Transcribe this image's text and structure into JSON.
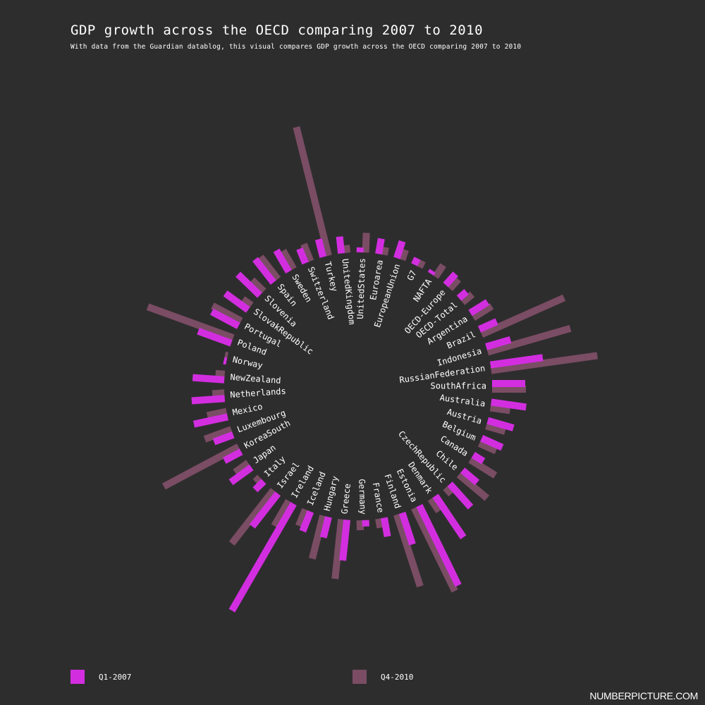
{
  "title": "GDP growth across the OECD comparing 2007 to 2010",
  "subtitle": "With data from the Guardian datablog, this visual compares GDP growth across the OECD comparing 2007 to 2010",
  "brand": "NUMBERPICTURE.COM",
  "colors": {
    "background": "#2e2d2e",
    "q1_2007": "#d22ee0",
    "q4_2010": "#7a4d64",
    "text": "#ffffff"
  },
  "chart_data": {
    "type": "bar",
    "layout": "radial",
    "categories": [
      "Turkey",
      "UnitedKingdom",
      "UnitedStates",
      "Euroarea",
      "EuropeanUnion",
      "G7",
      "NAFTA",
      "OECD-Europe",
      "OECD-Total",
      "Argentina",
      "Brazil",
      "Indonesia",
      "RussianFederation",
      "SouthAfrica",
      "Australia",
      "Austria",
      "Belgium",
      "Canada",
      "Chile",
      "CzechRepublic",
      "Denmark",
      "Estonia",
      "Finland",
      "France",
      "Germany",
      "Greece",
      "Hungary",
      "Iceland",
      "Ireland",
      "Israel",
      "Italy",
      "Japan",
      "KoreaSouth",
      "Luxembourg",
      "Mexico",
      "Netherlands",
      "NewZealand",
      "Norway",
      "Poland",
      "Portugal",
      "SlovakRepublic",
      "Slovenia",
      "Spain",
      "Sweden",
      "Switzerland"
    ],
    "series": [
      {
        "name": "Q1-2007",
        "values": [
          26,
          24,
          7,
          22,
          25,
          10,
          5,
          21,
          14,
          29,
          27,
          36,
          75,
          47,
          50,
          38,
          32,
          17,
          27,
          44,
          71,
          126,
          47,
          27,
          9,
          58,
          30,
          30,
          175,
          59,
          17,
          36,
          27,
          29,
          49,
          47,
          45,
          4,
          50,
          43,
          40,
          43,
          42,
          35,
          22
        ]
      },
      {
        "name": "Q4-2010",
        "values": [
          188,
          11,
          28,
          11,
          15,
          10,
          20,
          18,
          18,
          31,
          128,
          122,
          152,
          48,
          28,
          28,
          26,
          42,
          52,
          12,
          21,
          131,
          107,
          13,
          14,
          85,
          63,
          25,
          41,
          96,
          9,
          23,
          120,
          40,
          28,
          17,
          13,
          4,
          129,
          46,
          15,
          23,
          40,
          30,
          26
        ]
      }
    ]
  }
}
